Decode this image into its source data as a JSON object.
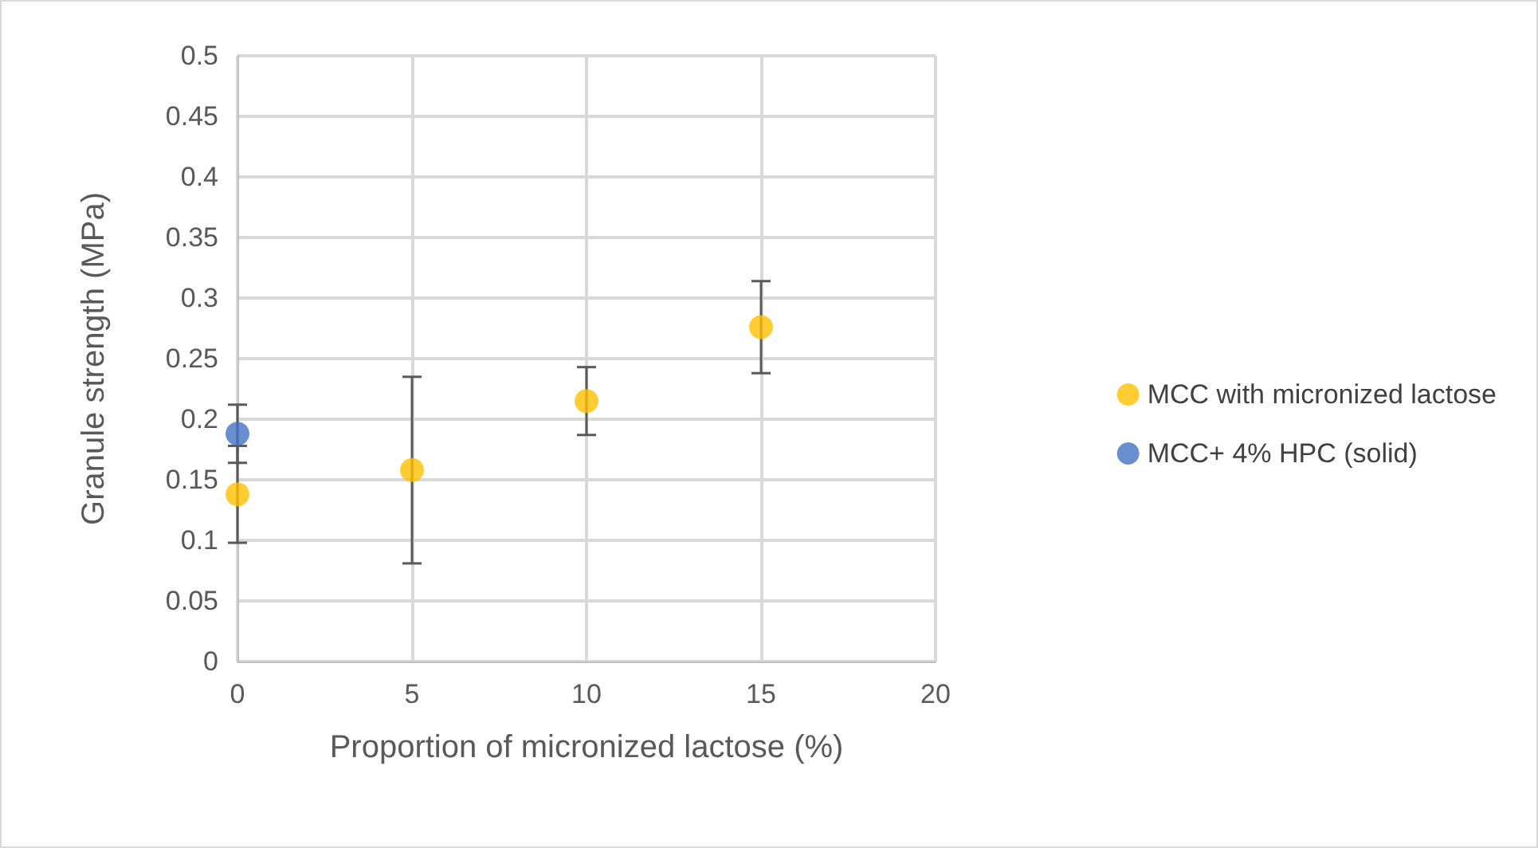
{
  "chart_data": {
    "type": "scatter",
    "xlabel": "Proportion of micronized lactose (%)",
    "ylabel": "Granule strength (MPa)",
    "xlim": [
      0,
      20
    ],
    "xticks": [
      0,
      5,
      10,
      15,
      20
    ],
    "ylim": [
      0,
      0.5
    ],
    "yticks": [
      0,
      0.05,
      0.1,
      0.15,
      0.2,
      0.25,
      0.3,
      0.35,
      0.4,
      0.45,
      0.5
    ],
    "grid": true,
    "legend": "right",
    "marker": "circle",
    "series": [
      {
        "name": "MCC with micronized lactose",
        "color": "#ffc000",
        "x": [
          0,
          5,
          10,
          15
        ],
        "values": [
          0.138,
          0.158,
          0.215,
          0.276
        ],
        "errors": [
          0.04,
          0.077,
          0.028,
          0.038
        ]
      },
      {
        "name": "MCC+ 4% HPC (solid)",
        "color": "#4472c4",
        "x": [
          0
        ],
        "values": [
          0.188
        ],
        "errors": [
          0.024
        ]
      }
    ]
  }
}
